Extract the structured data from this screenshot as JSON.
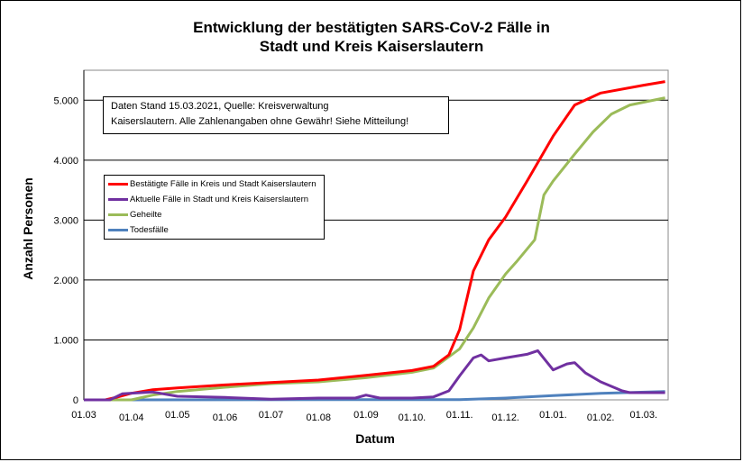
{
  "chart_data": {
    "type": "line",
    "title": [
      "Entwicklung der bestätigten SARS-CoV-2 Fälle in",
      "Stadt und Kreis Kaiserslautern"
    ],
    "xlabel": "Datum",
    "ylabel": "Anzahl Personen",
    "ylim": [
      0,
      5500
    ],
    "xlim": [
      "2020-03-01",
      "2021-03-17"
    ],
    "yticks": [
      {
        "v": 0,
        "label": "0"
      },
      {
        "v": 1000,
        "label": "1.000"
      },
      {
        "v": 2000,
        "label": "2.000"
      },
      {
        "v": 3000,
        "label": "3.000"
      },
      {
        "v": 4000,
        "label": "4.000"
      },
      {
        "v": 5000,
        "label": "5.000"
      }
    ],
    "xticks": [
      {
        "d": "2020-03-01",
        "label": "01.03"
      },
      {
        "d": "2020-04-01",
        "label": "01.04"
      },
      {
        "d": "2020-05-01",
        "label": "01.05"
      },
      {
        "d": "2020-06-01",
        "label": "01.06"
      },
      {
        "d": "2020-07-01",
        "label": "01.07"
      },
      {
        "d": "2020-08-01",
        "label": "01.08"
      },
      {
        "d": "2020-09-01",
        "label": "01.09"
      },
      {
        "d": "2020-10-01",
        "label": "01.10."
      },
      {
        "d": "2020-11-01",
        "label": "01.11."
      },
      {
        "d": "2020-12-01",
        "label": "01.12."
      },
      {
        "d": "2021-01-01",
        "label": "01.01."
      },
      {
        "d": "2021-02-01",
        "label": "01.02."
      },
      {
        "d": "2021-03-01",
        "label": "01.03."
      }
    ],
    "grid": true,
    "legend_placement": "top-left",
    "annotation": [
      "Daten Stand 15.03.2021, Quelle: Kreisverwaltung",
      "Kaiserslautern. Alle Zahlenangaben ohne Gewähr! Siehe Mitteilung!"
    ],
    "series": [
      {
        "name": "Bestätigte Fälle in Kreis und Stadt Kaiserslautern",
        "color": "#ff0000",
        "points": [
          [
            "2020-03-01",
            0
          ],
          [
            "2020-03-15",
            0
          ],
          [
            "2020-03-22",
            40
          ],
          [
            "2020-04-01",
            110
          ],
          [
            "2020-04-15",
            170
          ],
          [
            "2020-05-01",
            200
          ],
          [
            "2020-06-01",
            250
          ],
          [
            "2020-07-01",
            290
          ],
          [
            "2020-08-01",
            330
          ],
          [
            "2020-09-01",
            410
          ],
          [
            "2020-10-01",
            490
          ],
          [
            "2020-10-15",
            560
          ],
          [
            "2020-10-25",
            750
          ],
          [
            "2020-11-01",
            1170
          ],
          [
            "2020-11-10",
            2150
          ],
          [
            "2020-11-20",
            2670
          ],
          [
            "2020-12-01",
            3050
          ],
          [
            "2020-12-15",
            3650
          ],
          [
            "2021-01-01",
            4400
          ],
          [
            "2021-01-15",
            4920
          ],
          [
            "2021-02-01",
            5120
          ],
          [
            "2021-03-01",
            5250
          ],
          [
            "2021-03-15",
            5310
          ]
        ]
      },
      {
        "name": "Aktuelle Fälle in Stadt und Kreis Kaiserslautern",
        "color": "#7030a0",
        "points": [
          [
            "2020-03-01",
            0
          ],
          [
            "2020-03-18",
            0
          ],
          [
            "2020-03-26",
            100
          ],
          [
            "2020-04-15",
            130
          ],
          [
            "2020-05-01",
            60
          ],
          [
            "2020-06-01",
            40
          ],
          [
            "2020-07-01",
            10
          ],
          [
            "2020-08-01",
            30
          ],
          [
            "2020-08-25",
            30
          ],
          [
            "2020-09-01",
            80
          ],
          [
            "2020-09-10",
            30
          ],
          [
            "2020-10-01",
            30
          ],
          [
            "2020-10-15",
            50
          ],
          [
            "2020-10-25",
            150
          ],
          [
            "2020-11-01",
            400
          ],
          [
            "2020-11-10",
            700
          ],
          [
            "2020-11-15",
            750
          ],
          [
            "2020-11-20",
            650
          ],
          [
            "2020-12-01",
            700
          ],
          [
            "2020-12-15",
            760
          ],
          [
            "2020-12-22",
            820
          ],
          [
            "2021-01-01",
            500
          ],
          [
            "2021-01-10",
            600
          ],
          [
            "2021-01-15",
            620
          ],
          [
            "2021-01-22",
            450
          ],
          [
            "2021-02-01",
            300
          ],
          [
            "2021-02-15",
            150
          ],
          [
            "2021-02-20",
            120
          ],
          [
            "2021-03-15",
            120
          ]
        ]
      },
      {
        "name": "Geheilte",
        "color": "#9bbb59",
        "points": [
          [
            "2020-03-01",
            0
          ],
          [
            "2020-04-01",
            0
          ],
          [
            "2020-04-15",
            80
          ],
          [
            "2020-05-01",
            140
          ],
          [
            "2020-06-01",
            210
          ],
          [
            "2020-07-01",
            270
          ],
          [
            "2020-08-01",
            300
          ],
          [
            "2020-09-01",
            370
          ],
          [
            "2020-10-01",
            460
          ],
          [
            "2020-10-15",
            530
          ],
          [
            "2020-11-01",
            850
          ],
          [
            "2020-11-10",
            1200
          ],
          [
            "2020-11-20",
            1700
          ],
          [
            "2020-12-01",
            2100
          ],
          [
            "2020-12-08",
            2300
          ],
          [
            "2020-12-20",
            2670
          ],
          [
            "2020-12-26",
            3420
          ],
          [
            "2021-01-01",
            3650
          ],
          [
            "2021-01-15",
            4100
          ],
          [
            "2021-01-27",
            4470
          ],
          [
            "2021-02-08",
            4770
          ],
          [
            "2021-02-20",
            4920
          ],
          [
            "2021-03-15",
            5040
          ]
        ]
      },
      {
        "name": "Todesfälle",
        "color": "#4f81bd",
        "points": [
          [
            "2020-03-01",
            0
          ],
          [
            "2020-11-01",
            5
          ],
          [
            "2020-12-01",
            30
          ],
          [
            "2021-01-01",
            70
          ],
          [
            "2021-02-01",
            110
          ],
          [
            "2021-03-15",
            140
          ]
        ]
      }
    ]
  }
}
